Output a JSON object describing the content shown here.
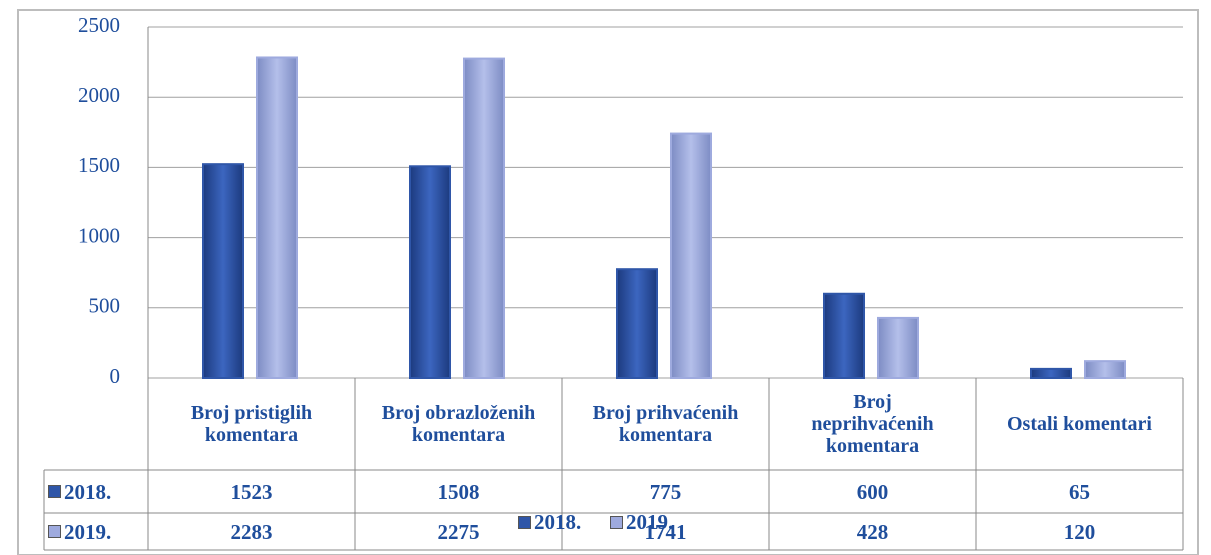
{
  "chart_data": {
    "type": "bar",
    "categories": [
      "Broj pristiglih komentara",
      "Broj obrazloženih komentara",
      "Broj prihvaćenih komentara",
      "Broj neprihvaćenih komentara",
      "Ostali komentari"
    ],
    "series": [
      {
        "name": "2018.",
        "color": "#2f56a8",
        "values": [
          1523,
          1508,
          775,
          600,
          65
        ]
      },
      {
        "name": "2019.",
        "color": "#9eaade",
        "values": [
          2283,
          2275,
          1741,
          428,
          120
        ]
      }
    ],
    "ylim": [
      0,
      2500
    ],
    "yticks": [
      0,
      500,
      1000,
      1500,
      2000,
      2500
    ],
    "grid": true,
    "legend": "bottom"
  }
}
